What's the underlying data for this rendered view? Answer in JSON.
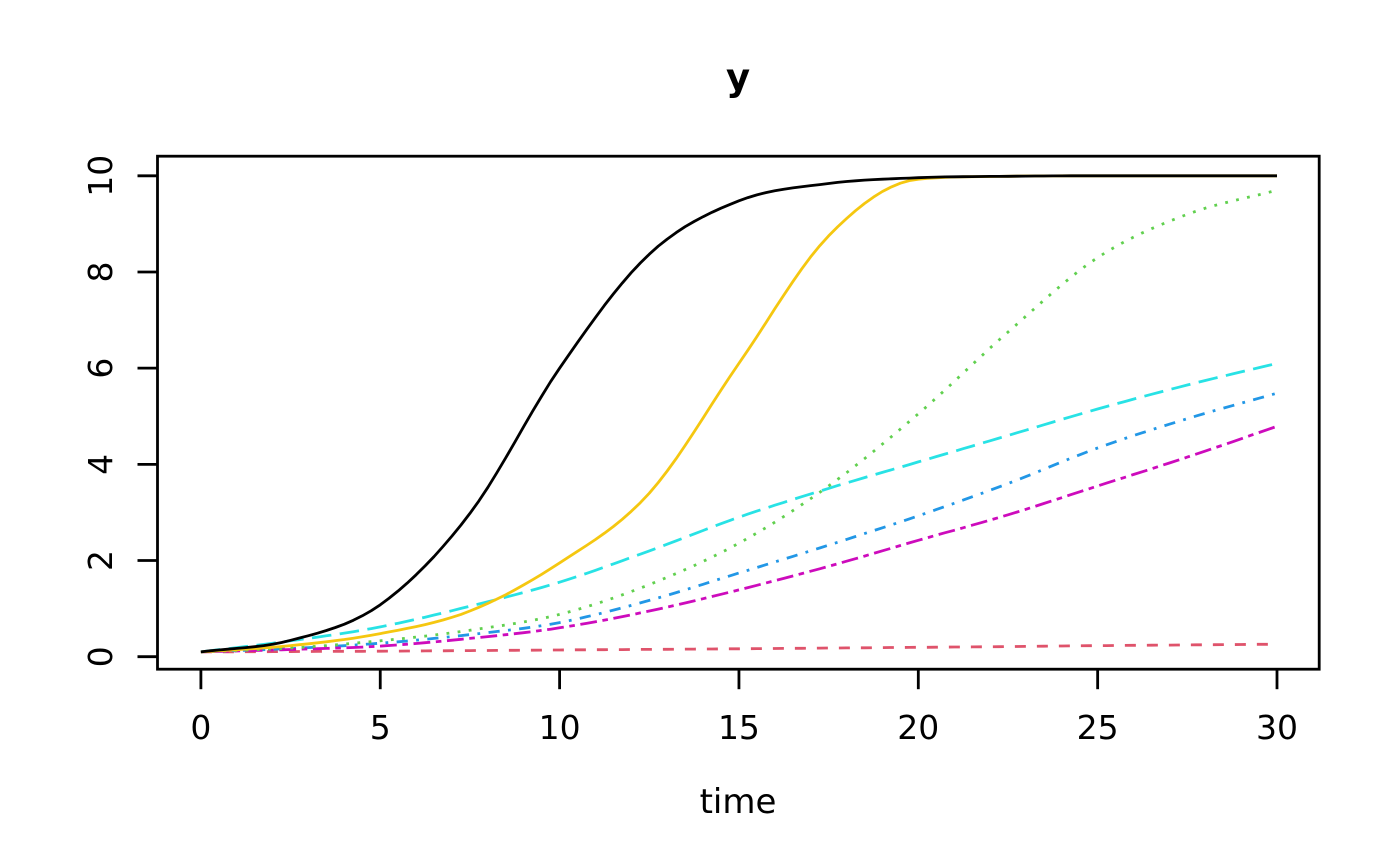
{
  "chart_data": {
    "type": "line",
    "title": "y",
    "xlabel": "time",
    "ylabel": "",
    "xlim": [
      0,
      30
    ],
    "ylim": [
      0,
      10
    ],
    "grid": false,
    "legend": null,
    "x_ticks": [
      0,
      5,
      10,
      15,
      20,
      25,
      30
    ],
    "y_ticks": [
      0,
      2,
      4,
      6,
      8,
      10
    ],
    "x": [
      0,
      2.5,
      5,
      7.5,
      10,
      12.5,
      15,
      17.5,
      20,
      22.5,
      25,
      27.5,
      30
    ],
    "series": [
      {
        "name": "salmon-dashed",
        "color": "#DF536B",
        "linetype": "dashed",
        "values": [
          0.1,
          0.107,
          0.115,
          0.127,
          0.14,
          0.152,
          0.165,
          0.18,
          0.195,
          0.21,
          0.23,
          0.245,
          0.26
        ]
      },
      {
        "name": "cyan-longdash",
        "color": "#28E2E5",
        "linetype": "longdash",
        "values": [
          0.1,
          0.33,
          0.62,
          1.05,
          1.55,
          2.2,
          2.9,
          3.5,
          4.05,
          4.6,
          5.15,
          5.65,
          6.1
        ]
      },
      {
        "name": "blue-dotdash",
        "color": "#2297E6",
        "linetype": "dotdash",
        "values": [
          0.1,
          0.17,
          0.28,
          0.46,
          0.71,
          1.17,
          1.74,
          2.32,
          2.93,
          3.6,
          4.34,
          4.95,
          5.48
        ]
      },
      {
        "name": "magenta-twodash",
        "color": "#CD0BBC",
        "linetype": "twodash",
        "values": [
          0.1,
          0.15,
          0.22,
          0.38,
          0.6,
          0.95,
          1.39,
          1.88,
          2.42,
          2.95,
          3.55,
          4.15,
          4.79
        ]
      },
      {
        "name": "green-dotted",
        "color": "#61D04F",
        "linetype": "dotted",
        "values": [
          0.1,
          0.18,
          0.33,
          0.55,
          0.88,
          1.5,
          2.36,
          3.55,
          5.05,
          6.75,
          8.3,
          9.2,
          9.7
        ]
      },
      {
        "name": "gold-solid",
        "color": "#F5C710",
        "linetype": "solid",
        "values": [
          0.1,
          0.23,
          0.48,
          0.95,
          1.95,
          3.4,
          6.1,
          8.75,
          9.93,
          9.99,
          10.0,
          10.0,
          10.0
        ]
      },
      {
        "name": "black-solid",
        "color": "#000000",
        "linetype": "solid",
        "values": [
          0.1,
          0.34,
          1.08,
          2.98,
          6.0,
          8.37,
          9.48,
          9.84,
          9.96,
          9.99,
          10.0,
          10.0,
          10.0
        ]
      }
    ]
  }
}
